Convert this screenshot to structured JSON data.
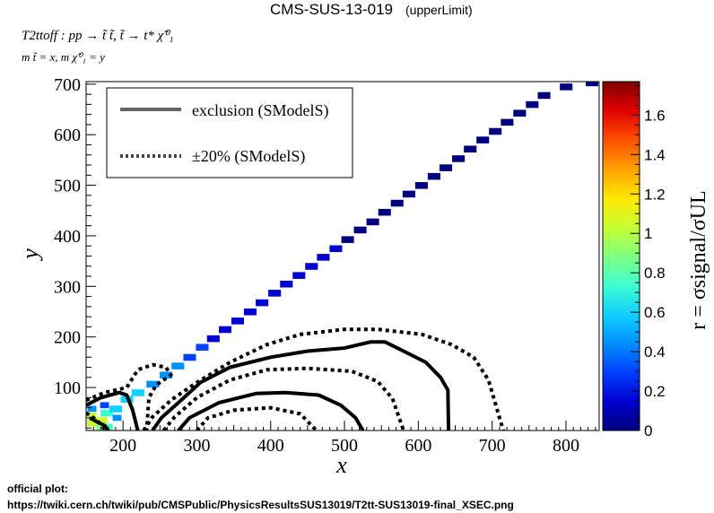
{
  "header": {
    "title": "CMS-SUS-13-019",
    "subtitle": "(upperLimit)",
    "process": "T2ttoff : pp → t̃ t̃, t̃ → t* χ̃⁰₁",
    "mass_line": "m t̃ = x, m χ̃⁰₁ = y"
  },
  "footer": {
    "label": "official plot:",
    "url": "https://twiki.cern.ch/twiki/pub/CMSPublic/PhysicsResultsSUS13019/T2tt-SUS13019-final_XSEC.png"
  },
  "chart_data": {
    "type": "heatmap",
    "xlabel": "x",
    "ylabel": "y",
    "zlabel": "r = σsignal/σUL",
    "xlim": [
      150,
      845
    ],
    "ylim": [
      15,
      705
    ],
    "zlim": [
      0,
      1.77
    ],
    "xticks": [
      200,
      300,
      400,
      500,
      600,
      700,
      800
    ],
    "yticks": [
      100,
      200,
      300,
      400,
      500,
      600,
      700
    ],
    "zticks": [
      0,
      0.2,
      0.4,
      0.6,
      0.8,
      1,
      1.2,
      1.4,
      1.6
    ],
    "legend": {
      "position": "top-left",
      "entries": [
        {
          "label": "exclusion (SModelS)",
          "style": "solid"
        },
        {
          "label": "±20% (SModelS)",
          "style": "dotted"
        }
      ]
    },
    "diagonal_cells": {
      "description_bin_size": [
        16.5,
        12.5
      ],
      "points": [
        [
          160,
          30,
          1.0
        ],
        [
          170,
          35,
          1.05
        ],
        [
          178,
          50,
          0.7
        ],
        [
          190,
          58,
          0.6
        ],
        [
          205,
          77,
          0.58
        ],
        [
          220,
          90,
          0.52
        ],
        [
          240,
          107,
          0.5
        ],
        [
          258,
          125,
          0.45
        ],
        [
          274,
          143,
          0.4
        ],
        [
          290,
          160,
          0.33
        ],
        [
          307,
          180,
          0.26
        ],
        [
          322,
          197,
          0.22
        ],
        [
          338,
          215,
          0.14
        ],
        [
          355,
          232,
          0.13
        ],
        [
          372,
          250,
          0.12
        ],
        [
          388,
          268,
          0.11
        ],
        [
          405,
          287,
          0.1
        ],
        [
          421,
          305,
          0.09
        ],
        [
          438,
          322,
          0.09
        ],
        [
          455,
          340,
          0.09
        ],
        [
          471,
          358,
          0.08
        ],
        [
          488,
          375,
          0.08
        ],
        [
          504,
          393,
          0.07
        ],
        [
          521,
          412,
          0.07
        ],
        [
          538,
          428,
          0.07
        ],
        [
          554,
          447,
          0.07
        ],
        [
          571,
          465,
          0.07
        ],
        [
          587,
          483,
          0.07
        ],
        [
          604,
          500,
          0.06
        ],
        [
          621,
          518,
          0.06
        ],
        [
          637,
          535,
          0.06
        ],
        [
          654,
          553,
          0.06
        ],
        [
          670,
          572,
          0.06
        ],
        [
          687,
          590,
          0.06
        ],
        [
          704,
          607,
          0.05
        ],
        [
          720,
          625,
          0.05
        ],
        [
          737,
          643,
          0.05
        ],
        [
          754,
          660,
          0.05
        ],
        [
          770,
          678,
          0.05
        ],
        [
          800,
          695,
          0.05
        ],
        [
          835,
          703,
          0.05
        ]
      ]
    },
    "corner_cells": [
      [
        158,
        45,
        1.1
      ],
      [
        158,
        58,
        0.4
      ],
      [
        170,
        22,
        0.95
      ],
      [
        180,
        22,
        0.75
      ],
      [
        192,
        40,
        0.5
      ],
      [
        175,
        65,
        0.3
      ]
    ],
    "contours": [
      {
        "style": "solid",
        "points": [
          [
            150,
            65
          ],
          [
            170,
            80
          ],
          [
            195,
            90
          ],
          [
            205,
            85
          ],
          [
            213,
            55
          ],
          [
            220,
            15
          ]
        ]
      },
      {
        "style": "solid",
        "points": [
          [
            155,
            40
          ],
          [
            165,
            32
          ],
          [
            175,
            25
          ],
          [
            180,
            15
          ]
        ]
      },
      {
        "style": "solid",
        "points": [
          [
            240,
            15
          ],
          [
            252,
            40
          ],
          [
            275,
            70
          ],
          [
            305,
            110
          ],
          [
            345,
            140
          ],
          [
            400,
            160
          ],
          [
            450,
            172
          ],
          [
            500,
            178
          ],
          [
            535,
            190
          ],
          [
            555,
            190
          ],
          [
            580,
            172
          ],
          [
            610,
            150
          ],
          [
            630,
            120
          ],
          [
            640,
            95
          ],
          [
            641,
            15
          ]
        ]
      },
      {
        "style": "solid",
        "points": [
          [
            275,
            15
          ],
          [
            290,
            40
          ],
          [
            330,
            70
          ],
          [
            380,
            88
          ],
          [
            420,
            90
          ],
          [
            465,
            85
          ],
          [
            495,
            65
          ],
          [
            515,
            40
          ],
          [
            525,
            15
          ]
        ]
      },
      {
        "style": "dotted",
        "points": [
          [
            150,
            75
          ],
          [
            175,
            90
          ],
          [
            205,
            100
          ],
          [
            220,
            135
          ],
          [
            240,
            145
          ],
          [
            258,
            140
          ],
          [
            265,
            125
          ],
          [
            245,
            105
          ],
          [
            235,
            80
          ],
          [
            232,
            15
          ]
        ]
      },
      {
        "style": "dotted",
        "points": [
          [
            150,
            50
          ],
          [
            165,
            35
          ],
          [
            177,
            15
          ]
        ]
      },
      {
        "style": "dotted",
        "points": [
          [
            228,
            15
          ],
          [
            240,
            42
          ],
          [
            265,
            75
          ],
          [
            300,
            110
          ],
          [
            345,
            150
          ],
          [
            395,
            185
          ],
          [
            440,
            205
          ],
          [
            500,
            215
          ],
          [
            545,
            215
          ],
          [
            605,
            205
          ],
          [
            645,
            185
          ],
          [
            675,
            160
          ],
          [
            695,
            115
          ],
          [
            705,
            65
          ],
          [
            715,
            15
          ]
        ]
      },
      {
        "style": "dotted",
        "points": [
          [
            255,
            15
          ],
          [
            270,
            42
          ],
          [
            300,
            80
          ],
          [
            345,
            115
          ],
          [
            395,
            135
          ],
          [
            450,
            138
          ],
          [
            510,
            132
          ],
          [
            545,
            112
          ],
          [
            565,
            78
          ],
          [
            580,
            15
          ]
        ]
      },
      {
        "style": "dotted",
        "points": [
          [
            300,
            15
          ],
          [
            315,
            40
          ],
          [
            350,
            55
          ],
          [
            400,
            60
          ],
          [
            440,
            48
          ],
          [
            462,
            15
          ]
        ]
      }
    ],
    "palette": [
      "#00007f",
      "#0000d0",
      "#0040ff",
      "#0090ff",
      "#10d0ff",
      "#40ffd0",
      "#80ff80",
      "#c8ff30",
      "#ffe800",
      "#ffa000",
      "#ff5000",
      "#e00000",
      "#800000"
    ]
  }
}
